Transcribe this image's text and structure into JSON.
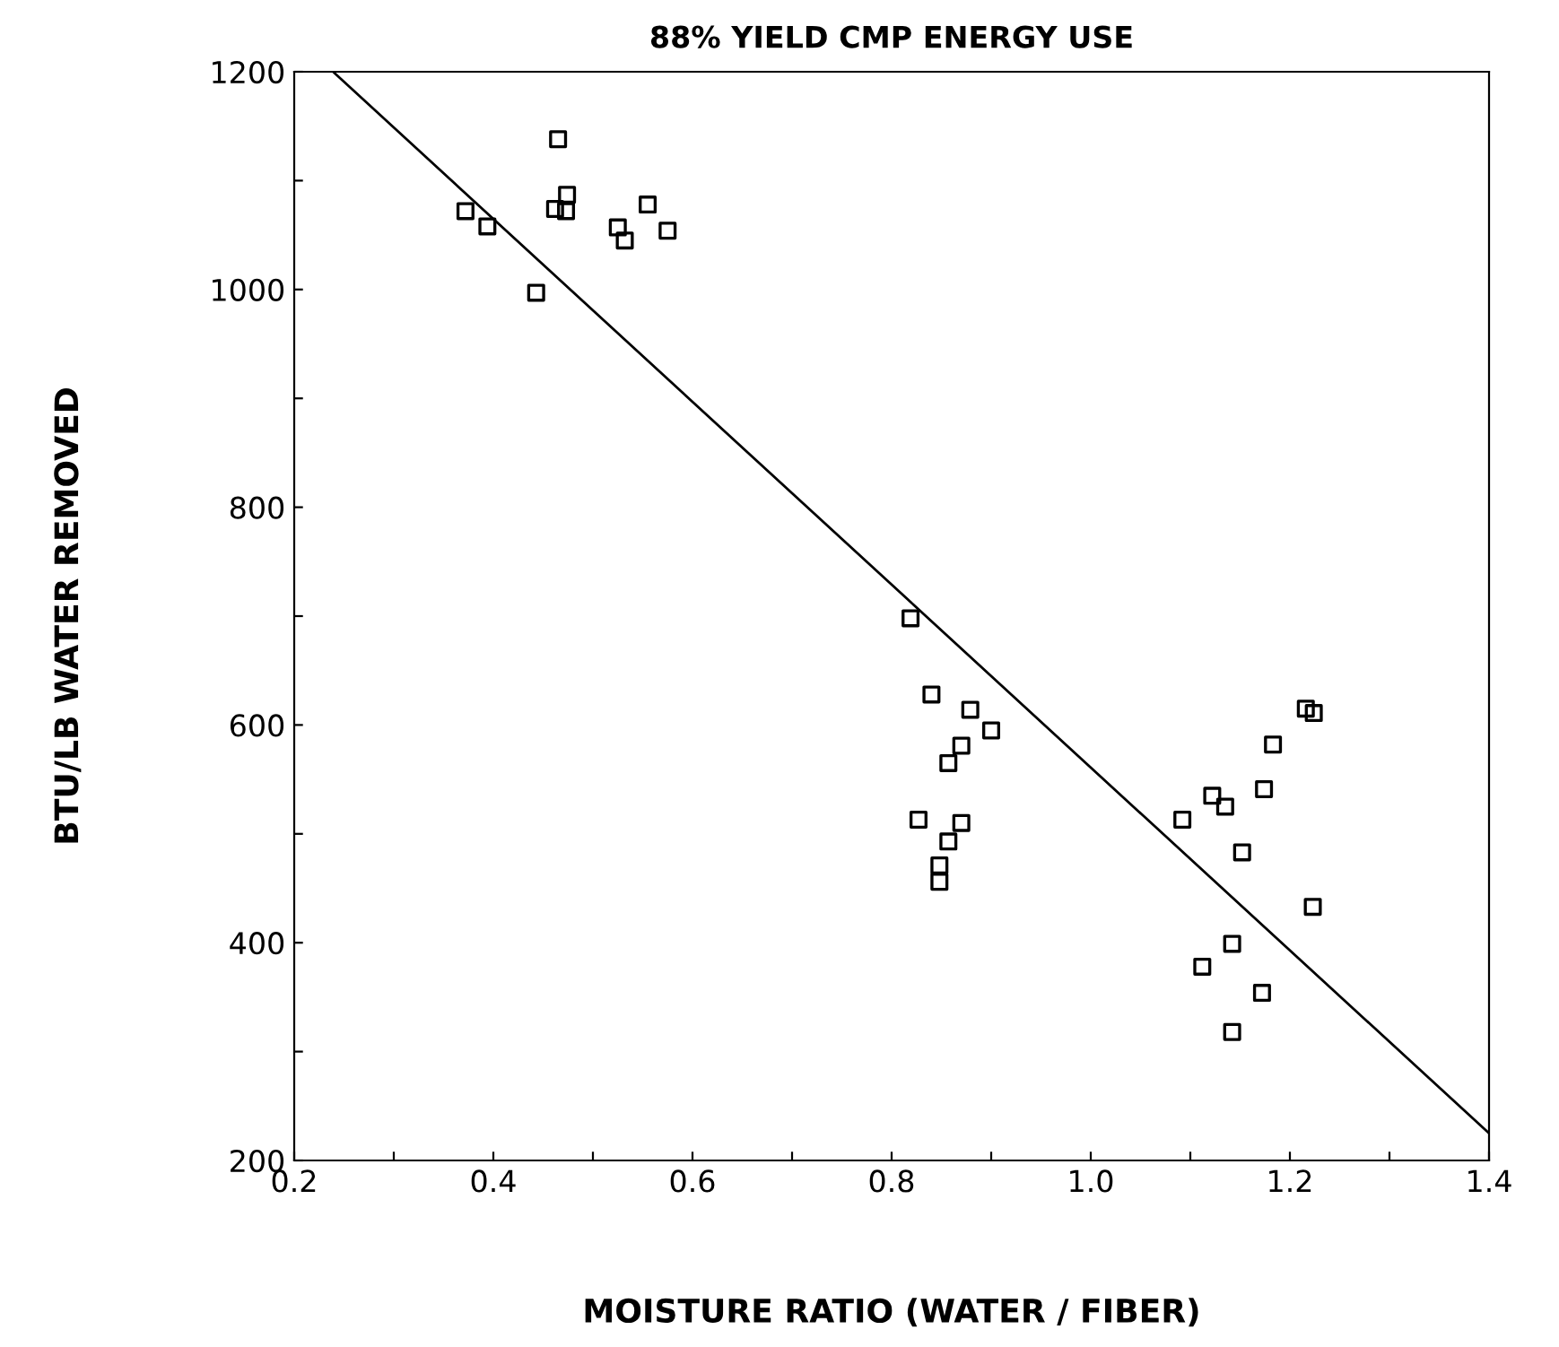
{
  "chart_data": {
    "type": "scatter",
    "title": "88% YIELD CMP ENERGY USE",
    "xlabel": "MOISTURE RATIO (WATER / FIBER)",
    "ylabel": "BTU/LB WATER REMOVED",
    "xlim": [
      0.2,
      1.4
    ],
    "ylim": [
      200,
      1200
    ],
    "xticks": [
      {
        "value": 0.2,
        "label": "0.2"
      },
      {
        "value": 0.3,
        "label": null
      },
      {
        "value": 0.4,
        "label": "0.4"
      },
      {
        "value": 0.5,
        "label": null
      },
      {
        "value": 0.6,
        "label": "0.6"
      },
      {
        "value": 0.7,
        "label": null
      },
      {
        "value": 0.8,
        "label": "0.8"
      },
      {
        "value": 0.9,
        "label": null
      },
      {
        "value": 1.0,
        "label": "1.0"
      },
      {
        "value": 1.1,
        "label": null
      },
      {
        "value": 1.2,
        "label": "1.2"
      },
      {
        "value": 1.3,
        "label": null
      },
      {
        "value": 1.4,
        "label": "1.4"
      }
    ],
    "yticks": [
      200,
      {
        "value": 300,
        "label": null
      },
      400,
      {
        "value": 500,
        "label": null
      },
      600,
      {
        "value": 700,
        "label": null
      },
      800,
      {
        "value": 900,
        "label": null
      },
      1000,
      {
        "value": 1100,
        "label": null
      },
      1200
    ],
    "marker": "square",
    "grid": false,
    "legend": false,
    "series": [
      {
        "color": "#000000",
        "x": [
          0.372,
          0.394,
          0.443,
          0.465,
          0.462,
          0.474,
          0.473,
          0.525,
          0.532,
          0.555,
          0.575,
          0.819,
          0.84,
          0.879,
          0.9,
          0.87,
          0.857,
          0.827,
          0.87,
          0.857,
          0.848,
          0.848,
          1.092,
          1.122,
          1.135,
          1.152,
          1.174,
          1.183,
          1.216,
          1.224,
          1.223,
          1.142,
          1.112,
          1.172,
          1.142
        ],
        "values": [
          1072,
          1058,
          997,
          1138,
          1074,
          1087,
          1072,
          1057,
          1045,
          1078,
          1054,
          698,
          628,
          614,
          595,
          581,
          565,
          513,
          510,
          493,
          471,
          456,
          513,
          535,
          525,
          483,
          541,
          582,
          615,
          611,
          433,
          399,
          378,
          354,
          318
        ]
      },
      {
        "type": "line",
        "color": "#000000",
        "marker": "none",
        "x": [
          0.239,
          1.4
        ],
        "values": [
          1200,
          225
        ]
      }
    ]
  }
}
